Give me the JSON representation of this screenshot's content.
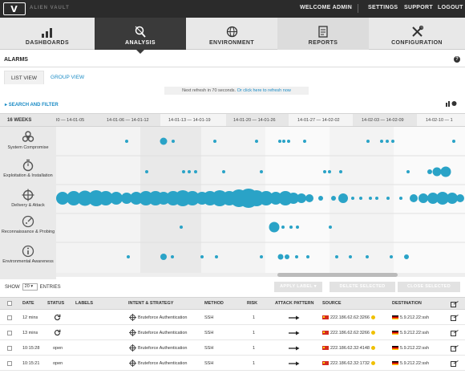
{
  "app": {
    "brand": "ALIEN VAULT",
    "logo_letter": "V"
  },
  "top_nav": {
    "welcome": "WELCOME ADMIN",
    "settings": "SETTINGS",
    "support": "SUPPORT",
    "logout": "LOGOUT"
  },
  "main_nav": [
    {
      "label": "DASHBOARDS",
      "icon": "bar-chart-icon"
    },
    {
      "label": "ANALYSIS",
      "icon": "magnifier-icon",
      "active": true
    },
    {
      "label": "ENVIRONMENT",
      "icon": "globe-icon"
    },
    {
      "label": "REPORTS",
      "icon": "document-icon"
    },
    {
      "label": "CONFIGURATION",
      "icon": "tools-icon"
    }
  ],
  "section": {
    "title": "ALARMS"
  },
  "view_tabs": [
    "LIST VIEW",
    "GROUP VIEW"
  ],
  "refresh": {
    "text": "Next refresh in 70 seconds.",
    "link": "Or click here to refresh now"
  },
  "search_filter": "SEARCH AND FILTER",
  "timeline": {
    "weeks_label": "16 WEEKS",
    "ranges": [
      "I0 — 14-01-05",
      "14-01-06 — 14-01-12",
      "14-01-13 — 14-01-19",
      "14-01-20 — 14-01-26",
      "14-01-27 — 14-02-02",
      "14-02-03 — 14-02-09",
      "14-02-10 — 1"
    ],
    "categories": [
      {
        "label": "System Compromise",
        "icon": "biohazard-icon"
      },
      {
        "label": "Exploitation & Installation",
        "icon": "bomb-icon"
      },
      {
        "label": "Delivery & Attack",
        "icon": "crosshair-icon"
      },
      {
        "label": "Reconnaissance & Probing",
        "icon": "radar-icon"
      },
      {
        "label": "Environmental Awareness",
        "icon": "info-icon"
      }
    ],
    "bubble_color": "#2aa3c7"
  },
  "table_controls": {
    "show": "SHOW",
    "entries_value": "20",
    "entries": "ENTRIES",
    "apply_label": "APPLY LABEL",
    "delete_selected": "DELETE SELECTED",
    "close_selected": "CLOSE SELECTED"
  },
  "table": {
    "headers": [
      "DATE",
      "STATUS",
      "LABELS",
      "INTENT & STRATEGY",
      "METHOD",
      "RISK",
      "ATTACK PATTERN",
      "SOURCE",
      "DESTINATION"
    ],
    "rows": [
      {
        "date": "12 mins",
        "status": "",
        "intent": "Bruteforce Authentication",
        "method": "SSH",
        "risk": "1",
        "source": "222.186.62.62:3266",
        "destination": "5.9.212.22:ssh"
      },
      {
        "date": "13 mins",
        "status": "",
        "intent": "Bruteforce Authentication",
        "method": "SSH",
        "risk": "1",
        "source": "222.186.62.62:3266",
        "destination": "5.9.212.22:ssh"
      },
      {
        "date": "10:15:28",
        "status": "open",
        "intent": "Bruteforce Authentication",
        "method": "SSH",
        "risk": "1",
        "source": "222.186.62.32:4148",
        "destination": "5.9.212.22:ssh"
      },
      {
        "date": "10:15:21",
        "status": "open",
        "intent": "Bruteforce Authentication",
        "method": "SSH",
        "risk": "1",
        "source": "222.186.62.32:1732",
        "destination": "5.9.212.22:ssh"
      }
    ]
  }
}
